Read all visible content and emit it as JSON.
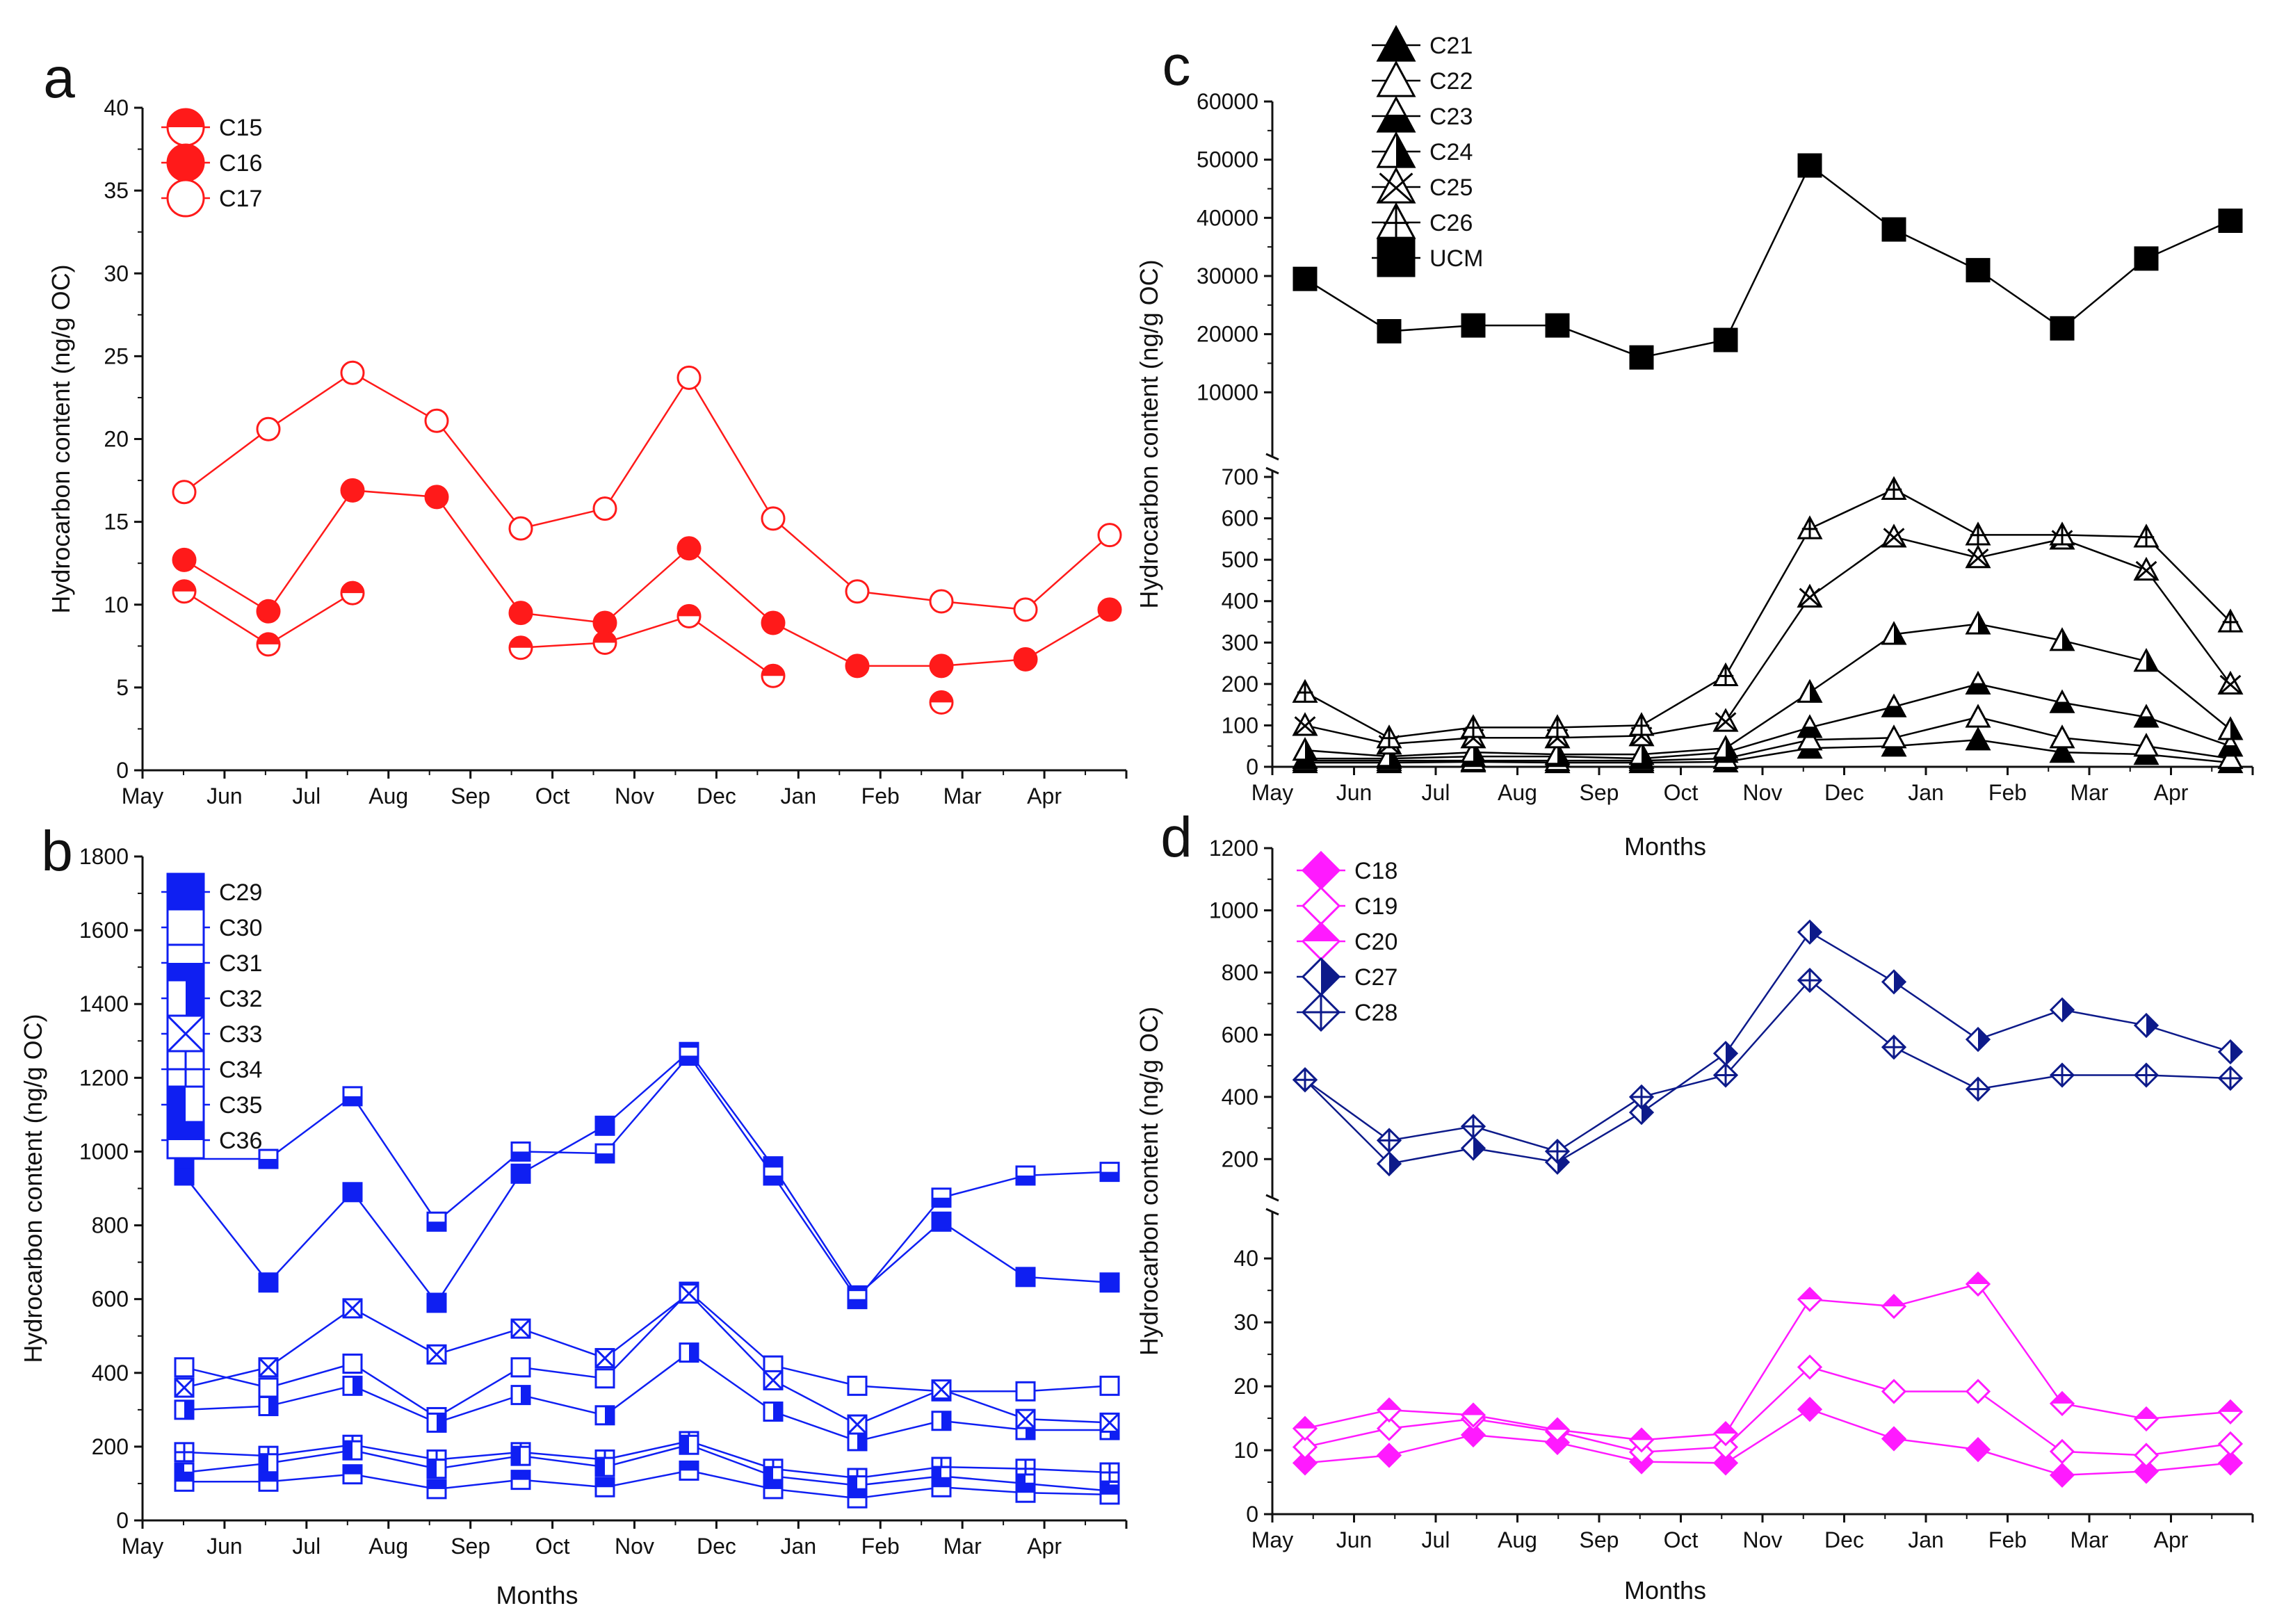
{
  "chart_data": [
    {
      "panel_label": "a",
      "type": "line",
      "xlabel": "",
      "ylabel": "Hydrocarbon content (ng/g OC)",
      "categories": [
        "May",
        "Jun",
        "Jul",
        "Aug",
        "Sep",
        "Oct",
        "Nov",
        "Dec",
        "Jan",
        "Feb",
        "Mar",
        "Apr"
      ],
      "y_ticks": [
        0,
        5,
        10,
        15,
        20,
        25,
        30,
        35,
        40
      ],
      "ylim": [
        0,
        40
      ],
      "color": "#ff1a1a",
      "series": [
        {
          "name": "C15",
          "marker": "circle-half-top",
          "values": [
            10.8,
            7.6,
            10.7,
            null,
            7.4,
            7.7,
            9.3,
            5.7,
            null,
            4.1,
            null,
            null
          ]
        },
        {
          "name": "C16",
          "marker": "circle-filled",
          "values": [
            12.7,
            9.6,
            16.9,
            16.5,
            9.5,
            8.9,
            13.4,
            8.9,
            6.3,
            6.3,
            6.7,
            9.7
          ]
        },
        {
          "name": "C17",
          "marker": "circle-open",
          "values": [
            16.8,
            20.6,
            24.0,
            21.1,
            14.6,
            15.8,
            23.7,
            15.2,
            10.8,
            10.2,
            9.7,
            14.2
          ]
        }
      ]
    },
    {
      "panel_label": "b",
      "type": "line",
      "xlabel": "Months",
      "ylabel": "Hydrocarbon content (ng/g OC)",
      "categories": [
        "May",
        "Jun",
        "Jul",
        "Aug",
        "Sep",
        "Oct",
        "Nov",
        "Dec",
        "Jan",
        "Feb",
        "Mar",
        "Apr"
      ],
      "y_ticks": [
        0,
        200,
        400,
        600,
        800,
        1000,
        1200,
        1400,
        1600,
        1800
      ],
      "ylim": [
        0,
        1800
      ],
      "color": "#0f1ff2",
      "series": [
        {
          "name": "C29",
          "marker": "square-filled",
          "values": [
            935,
            645,
            890,
            590,
            940,
            1070,
            1270,
            960,
            610,
            810,
            660,
            645
          ]
        },
        {
          "name": "C30",
          "marker": "square-open",
          "values": [
            415,
            360,
            425,
            280,
            415,
            385,
            620,
            420,
            365,
            350,
            350,
            365
          ]
        },
        {
          "name": "C31",
          "marker": "square-half-bottom",
          "values": [
            980,
            980,
            1150,
            810,
            1000,
            995,
            1260,
            935,
            600,
            875,
            935,
            945
          ]
        },
        {
          "name": "C32",
          "marker": "square-half-right",
          "values": [
            300,
            310,
            365,
            265,
            340,
            285,
            455,
            295,
            215,
            270,
            245,
            245
          ]
        },
        {
          "name": "C33",
          "marker": "square-cross",
          "values": [
            360,
            415,
            575,
            450,
            520,
            440,
            615,
            380,
            260,
            355,
            275,
            265
          ]
        },
        {
          "name": "C34",
          "marker": "square-plus",
          "values": [
            185,
            175,
            205,
            165,
            185,
            165,
            215,
            140,
            115,
            145,
            140,
            130
          ]
        },
        {
          "name": "C35",
          "marker": "square-half-left",
          "values": [
            130,
            155,
            190,
            140,
            175,
            145,
            205,
            120,
            95,
            120,
            100,
            80
          ]
        },
        {
          "name": "C36",
          "marker": "square-half-top",
          "values": [
            105,
            105,
            125,
            85,
            110,
            90,
            135,
            85,
            60,
            90,
            75,
            70
          ]
        }
      ]
    },
    {
      "panel_label": "c",
      "type": "line",
      "xlabel": "Months",
      "ylabel": "Hydrocarbon content (ng/g OC)",
      "categories": [
        "May",
        "Jun",
        "Jul",
        "Aug",
        "Sep",
        "Oct",
        "Nov",
        "Dec",
        "Jan",
        "Feb",
        "Mar",
        "Apr"
      ],
      "y_ticks_lower": [
        0,
        100,
        200,
        300,
        400,
        500,
        600,
        700
      ],
      "y_ticks_upper": [
        10000,
        20000,
        30000,
        40000,
        50000,
        60000
      ],
      "ylim_lower": [
        0,
        700
      ],
      "ylim_upper": [
        0,
        60000
      ],
      "axis_break": true,
      "color": "#000000",
      "series": [
        {
          "name": "C21",
          "marker": "triangle-filled",
          "values": [
            10,
            10,
            12,
            10,
            10,
            12,
            45,
            50,
            65,
            35,
            30,
            10
          ]
        },
        {
          "name": "C22",
          "marker": "triangle-open",
          "values": [
            15,
            15,
            15,
            15,
            15,
            20,
            65,
            70,
            120,
            70,
            50,
            20
          ]
        },
        {
          "name": "C23",
          "marker": "triangle-half-bottom",
          "values": [
            20,
            20,
            25,
            25,
            20,
            35,
            95,
            145,
            200,
            155,
            120,
            50
          ]
        },
        {
          "name": "C24",
          "marker": "triangle-half-right",
          "values": [
            40,
            25,
            35,
            30,
            30,
            45,
            180,
            320,
            345,
            305,
            255,
            90
          ]
        },
        {
          "name": "C25",
          "marker": "triangle-cross",
          "values": [
            100,
            55,
            70,
            70,
            75,
            110,
            410,
            555,
            505,
            550,
            475,
            200
          ]
        },
        {
          "name": "C26",
          "marker": "triangle-plus",
          "values": [
            180,
            70,
            95,
            95,
            100,
            220,
            575,
            670,
            560,
            560,
            555,
            350
          ]
        },
        {
          "name": "UCM",
          "marker": "square-filled",
          "values": [
            29500,
            20500,
            21500,
            21500,
            16000,
            19000,
            49000,
            38000,
            31000,
            21000,
            33000,
            39500
          ]
        }
      ]
    },
    {
      "panel_label": "d",
      "type": "line",
      "xlabel": "Months",
      "ylabel": "Hydrocarbon content (ng/g OC)",
      "categories": [
        "May",
        "Jun",
        "Jul",
        "Aug",
        "Sep",
        "Oct",
        "Nov",
        "Dec",
        "Jan",
        "Feb",
        "Mar",
        "Apr"
      ],
      "y_ticks_lower": [
        0,
        10,
        20,
        30,
        40
      ],
      "y_ticks_upper": [
        200,
        400,
        600,
        800,
        1000,
        1200
      ],
      "ylim_lower": [
        0,
        46
      ],
      "ylim_upper": [
        100,
        1200
      ],
      "axis_break": true,
      "series": [
        {
          "name": "C18",
          "marker": "diamond-filled",
          "color": "#ff1aff",
          "values": [
            8,
            9.2,
            12.4,
            11.2,
            8.2,
            8,
            16.4,
            11.8,
            10.1,
            6.1,
            6.7,
            8
          ]
        },
        {
          "name": "C19",
          "marker": "diamond-open",
          "color": "#ff1aff",
          "values": [
            10.5,
            13.4,
            14.9,
            12.9,
            9.7,
            10.5,
            23,
            19.2,
            19.2,
            9.8,
            9.2,
            11
          ]
        },
        {
          "name": "C20",
          "marker": "diamond-half-top",
          "color": "#ff1aff",
          "values": [
            13.4,
            16.3,
            15.5,
            13.2,
            11.6,
            12.6,
            33.6,
            32.5,
            36,
            17.3,
            14.9,
            16
          ]
        },
        {
          "name": "C27",
          "marker": "diamond-half-right",
          "color": "#0d1a8a",
          "values": [
            455,
            185,
            235,
            190,
            350,
            540,
            930,
            770,
            585,
            680,
            630,
            545
          ]
        },
        {
          "name": "C28",
          "marker": "diamond-cross",
          "color": "#0d1a8a",
          "values": [
            455,
            260,
            305,
            225,
            400,
            470,
            775,
            560,
            425,
            470,
            470,
            460
          ]
        }
      ]
    }
  ]
}
